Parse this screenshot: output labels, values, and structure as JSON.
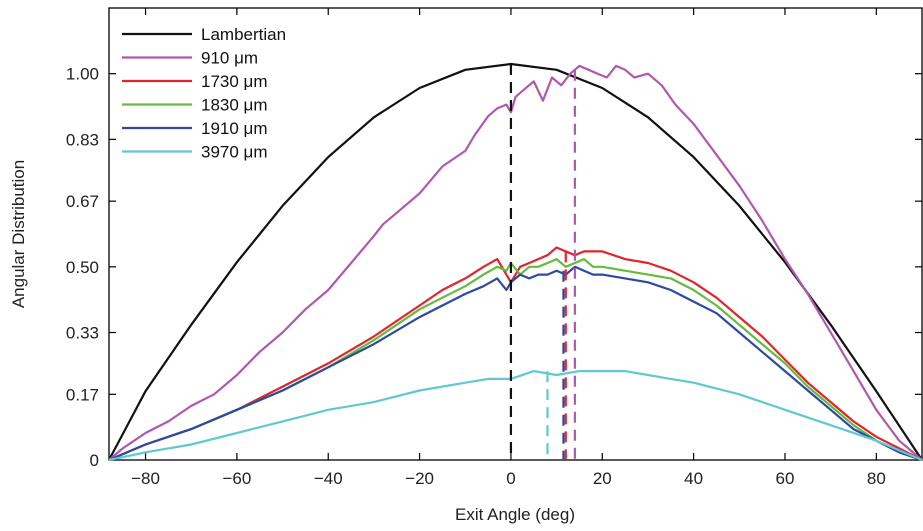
{
  "chart_data": {
    "type": "line",
    "title": "",
    "xlabel": "Exit Angle (deg)",
    "ylabel": "Angular Distribution",
    "xlim": [
      -88,
      90
    ],
    "ylim": [
      0,
      1.17
    ],
    "xticks": [
      -80,
      -60,
      -40,
      -20,
      0,
      20,
      40,
      60,
      80
    ],
    "xtick_labels": [
      "−80",
      "−60",
      "−40",
      "−20",
      "0",
      "20",
      "40",
      "60",
      "80"
    ],
    "yticks": [
      0,
      0.17,
      0.33,
      0.5,
      0.67,
      0.83,
      1.0
    ],
    "ytick_labels": [
      "0",
      "0.17",
      "0.33",
      "0.50",
      "0.67",
      "0.83",
      "1.00"
    ],
    "grid": false,
    "legend_position": "top-left",
    "series": [
      {
        "name": "Lambertian",
        "color": "#111111",
        "x": [
          -88,
          -80,
          -70,
          -60,
          -50,
          -40,
          -30,
          -20,
          -10,
          0,
          10,
          20,
          30,
          40,
          50,
          60,
          70,
          80,
          90
        ],
        "y": [
          0.0,
          0.178,
          0.35,
          0.512,
          0.658,
          0.784,
          0.887,
          0.963,
          1.01,
          1.025,
          1.01,
          0.963,
          0.887,
          0.784,
          0.658,
          0.512,
          0.35,
          0.178,
          0.0
        ]
      },
      {
        "name": "910   μm",
        "color": "#b257b0",
        "x": [
          -88,
          -85,
          -80,
          -75,
          -70,
          -65,
          -60,
          -55,
          -50,
          -45,
          -40,
          -35,
          -30,
          -28,
          -25,
          -20,
          -15,
          -10,
          -8,
          -5,
          -3,
          -1,
          0,
          1,
          3,
          5,
          7,
          9,
          11,
          13,
          15,
          17,
          19,
          21,
          23,
          25,
          27,
          30,
          33,
          36,
          40,
          45,
          50,
          55,
          60,
          65,
          70,
          75,
          80,
          85,
          90
        ],
        "y": [
          0.0,
          0.03,
          0.07,
          0.1,
          0.14,
          0.17,
          0.22,
          0.28,
          0.33,
          0.39,
          0.44,
          0.51,
          0.58,
          0.61,
          0.64,
          0.69,
          0.76,
          0.8,
          0.84,
          0.89,
          0.91,
          0.92,
          0.9,
          0.94,
          0.96,
          0.98,
          0.93,
          0.99,
          0.97,
          1.0,
          1.02,
          1.01,
          1.0,
          0.99,
          1.02,
          1.01,
          0.99,
          1.0,
          0.97,
          0.92,
          0.87,
          0.79,
          0.71,
          0.62,
          0.52,
          0.43,
          0.33,
          0.23,
          0.13,
          0.05,
          0.0
        ]
      },
      {
        "name": "1730 μm",
        "color": "#e0262a",
        "x": [
          -88,
          -80,
          -70,
          -60,
          -50,
          -40,
          -30,
          -20,
          -15,
          -10,
          -6,
          -3,
          -1,
          0,
          2,
          4,
          6,
          8,
          10,
          12,
          14,
          16,
          18,
          20,
          25,
          30,
          35,
          40,
          45,
          50,
          55,
          60,
          65,
          70,
          75,
          80,
          85,
          90
        ],
        "y": [
          0.0,
          0.04,
          0.08,
          0.13,
          0.19,
          0.25,
          0.32,
          0.4,
          0.44,
          0.47,
          0.5,
          0.52,
          0.48,
          0.46,
          0.5,
          0.51,
          0.52,
          0.53,
          0.55,
          0.54,
          0.53,
          0.54,
          0.54,
          0.54,
          0.52,
          0.51,
          0.49,
          0.46,
          0.42,
          0.37,
          0.32,
          0.26,
          0.2,
          0.15,
          0.1,
          0.06,
          0.03,
          0.0
        ]
      },
      {
        "name": "1830 μm",
        "color": "#66bb3c",
        "x": [
          -88,
          -80,
          -70,
          -60,
          -50,
          -40,
          -30,
          -20,
          -15,
          -10,
          -6,
          -3,
          -1,
          0,
          2,
          4,
          6,
          8,
          10,
          12,
          14,
          16,
          18,
          20,
          25,
          30,
          35,
          40,
          45,
          50,
          55,
          60,
          65,
          70,
          75,
          80,
          85,
          90
        ],
        "y": [
          0.0,
          0.04,
          0.08,
          0.13,
          0.18,
          0.24,
          0.31,
          0.39,
          0.42,
          0.45,
          0.48,
          0.5,
          0.49,
          0.51,
          0.48,
          0.5,
          0.5,
          0.51,
          0.52,
          0.5,
          0.51,
          0.52,
          0.5,
          0.5,
          0.49,
          0.48,
          0.47,
          0.44,
          0.4,
          0.35,
          0.3,
          0.25,
          0.19,
          0.14,
          0.09,
          0.05,
          0.02,
          0.0
        ]
      },
      {
        "name": "1910 μm",
        "color": "#2e4aa0",
        "x": [
          -88,
          -80,
          -70,
          -60,
          -50,
          -40,
          -30,
          -20,
          -15,
          -10,
          -6,
          -3,
          -1,
          0,
          2,
          4,
          6,
          8,
          10,
          12,
          14,
          16,
          18,
          20,
          25,
          30,
          35,
          40,
          45,
          50,
          55,
          60,
          65,
          70,
          75,
          80,
          85,
          90
        ],
        "y": [
          0.0,
          0.04,
          0.08,
          0.13,
          0.18,
          0.24,
          0.3,
          0.37,
          0.4,
          0.43,
          0.45,
          0.47,
          0.44,
          0.46,
          0.48,
          0.47,
          0.48,
          0.48,
          0.49,
          0.48,
          0.5,
          0.49,
          0.48,
          0.48,
          0.47,
          0.46,
          0.44,
          0.41,
          0.38,
          0.33,
          0.28,
          0.23,
          0.18,
          0.13,
          0.08,
          0.05,
          0.02,
          0.0
        ]
      },
      {
        "name": "3970 μm",
        "color": "#5fc8d3",
        "x": [
          -88,
          -80,
          -70,
          -60,
          -50,
          -40,
          -30,
          -20,
          -10,
          -5,
          0,
          5,
          10,
          15,
          20,
          25,
          30,
          35,
          40,
          50,
          60,
          70,
          80,
          90
        ],
        "y": [
          0.0,
          0.02,
          0.04,
          0.07,
          0.1,
          0.13,
          0.15,
          0.18,
          0.2,
          0.21,
          0.21,
          0.23,
          0.22,
          0.23,
          0.23,
          0.23,
          0.22,
          0.21,
          0.2,
          0.17,
          0.13,
          0.09,
          0.05,
          0.0
        ]
      }
    ],
    "markers": [
      {
        "series": "Lambertian",
        "color": "#111111",
        "x": 0,
        "y": 1.025
      },
      {
        "series": "910   μm",
        "color": "#b257b0",
        "x": 14,
        "y": 1.01
      },
      {
        "series": "1730 μm",
        "color": "#e0262a",
        "x": 12,
        "y": 0.54
      },
      {
        "series": "1910 μm",
        "color": "#2e4aa0",
        "x": 11.5,
        "y": 0.49
      },
      {
        "series": "3970 μm",
        "color": "#5fc8d3",
        "x": 8,
        "y": 0.23
      }
    ]
  }
}
